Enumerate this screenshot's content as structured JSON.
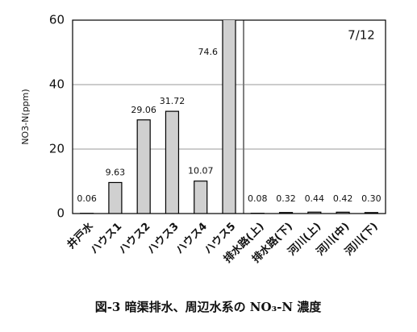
{
  "chart_data": {
    "type": "bar",
    "title": "図-3 暗渠排水、周辺水系の NO₃-N 濃度",
    "y_label": "NO3-N(ppm)",
    "annotation": "7/12",
    "categories": [
      "井戸水",
      "ハウス1",
      "ハウス2",
      "ハウス3",
      "ハウス4",
      "ハウス5",
      "排水路(上)",
      "排水路(下)",
      "河川(上)",
      "河川(中)",
      "河川(下)"
    ],
    "values": [
      0.06,
      9.63,
      29.06,
      31.72,
      10.07,
      74.6,
      0.08,
      0.32,
      0.44,
      0.42,
      0.3
    ],
    "value_labels": [
      "0.06",
      "9.63",
      "29.06",
      "31.72",
      "10.07",
      "74.6",
      "0.08",
      "0.32",
      "0.44",
      "0.42",
      "0.30"
    ],
    "color": "#d0d0d0",
    "ylim": [
      0,
      60
    ],
    "yticks": [
      0,
      20,
      40,
      60
    ],
    "grid": true
  }
}
